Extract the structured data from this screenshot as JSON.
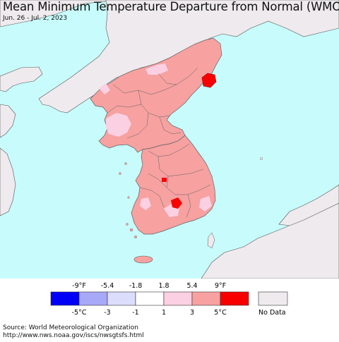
{
  "title": "Mean Minimum Temperature Departure from Normal (WMO)",
  "subtitle": "Jun. 26 - Jul. 2, 2023",
  "colors": {
    "ocean": "#c8fcfc",
    "nodata_land": "#eeeaed",
    "korea_fill": "#f7a1a1",
    "korea_light": "#fbd0e2",
    "hot": "#f80000",
    "border": "#606060"
  },
  "legend": {
    "f_labels": [
      "-9°F",
      "-5.4",
      "-1.8",
      "1.8",
      "5.4",
      "9°F"
    ],
    "c_labels": [
      "-5°C",
      "-3",
      "-1",
      "1",
      "3",
      "5°C"
    ],
    "swatch_colors": [
      "#0000f8",
      "#a8a8f8",
      "#dcdcfc",
      "#ffffff",
      "#fbd0e2",
      "#f7a1a1",
      "#f80000"
    ],
    "nodata_label": "No Data",
    "nodata_color": "#eeeaed"
  },
  "source_line": "Source: World Meteorological Organization",
  "url_line": "http://www.nws.noaa.gov/iscs/nwsgtsfs.html"
}
